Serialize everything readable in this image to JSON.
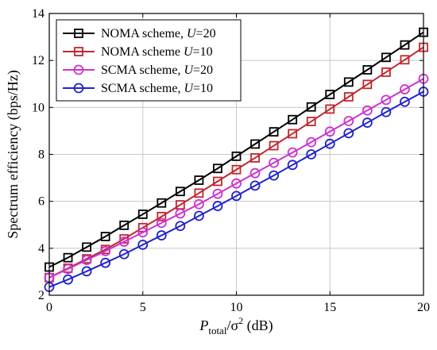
{
  "chart_data": {
    "type": "line",
    "xlabel": {
      "main": "P",
      "sub": "total",
      "rest": "/σ",
      "sup": "2",
      "unit": " (dB)"
    },
    "ylabel": "Spectrum efficiency (bps/Hz)",
    "xlim": [
      0,
      20
    ],
    "ylim": [
      2,
      14
    ],
    "xticks": [
      0,
      5,
      10,
      15,
      20
    ],
    "yticks": [
      2,
      4,
      6,
      8,
      10,
      12,
      14
    ],
    "grid": true,
    "legend_position": "top-left",
    "x": [
      0,
      1,
      2,
      3,
      4,
      5,
      6,
      7,
      8,
      9,
      10,
      11,
      12,
      13,
      14,
      15,
      16,
      17,
      18,
      19,
      20
    ],
    "series": [
      {
        "name": "NOMA scheme,",
        "name_var": "U",
        "name_val": "=20",
        "color": "#000000",
        "marker": "square",
        "values": [
          3.2,
          3.6,
          4.05,
          4.5,
          4.98,
          5.45,
          5.93,
          6.42,
          6.9,
          7.4,
          7.92,
          8.44,
          8.96,
          9.48,
          10.02,
          10.55,
          11.08,
          11.6,
          12.13,
          12.66,
          13.2
        ]
      },
      {
        "name": "NOMA scheme ",
        "name_var": "U",
        "name_val": "=10",
        "color": "#c0272d",
        "marker": "square",
        "values": [
          2.75,
          3.15,
          3.55,
          3.95,
          4.4,
          4.88,
          5.35,
          5.85,
          6.35,
          6.85,
          7.35,
          7.85,
          8.37,
          8.88,
          9.4,
          9.93,
          10.45,
          10.98,
          11.5,
          12.03,
          12.56
        ]
      },
      {
        "name": "SCMA scheme,",
        "name_var": "U",
        "name_val": "=20",
        "color": "#cc33cc",
        "marker": "circle",
        "values": [
          2.75,
          3.12,
          3.5,
          3.88,
          4.28,
          4.68,
          5.08,
          5.48,
          5.88,
          6.32,
          6.76,
          7.2,
          7.64,
          8.08,
          8.52,
          8.97,
          9.42,
          9.87,
          10.32,
          10.77,
          11.22
        ]
      },
      {
        "name": "SCMA scheme,",
        "name_var": "U",
        "name_val": "=10",
        "color": "#2222cc",
        "marker": "circle",
        "values": [
          2.35,
          2.67,
          3.02,
          3.38,
          3.75,
          4.15,
          4.55,
          4.95,
          5.38,
          5.8,
          6.23,
          6.67,
          7.1,
          7.55,
          8.0,
          8.45,
          8.9,
          9.35,
          9.8,
          10.24,
          10.67
        ]
      }
    ]
  }
}
